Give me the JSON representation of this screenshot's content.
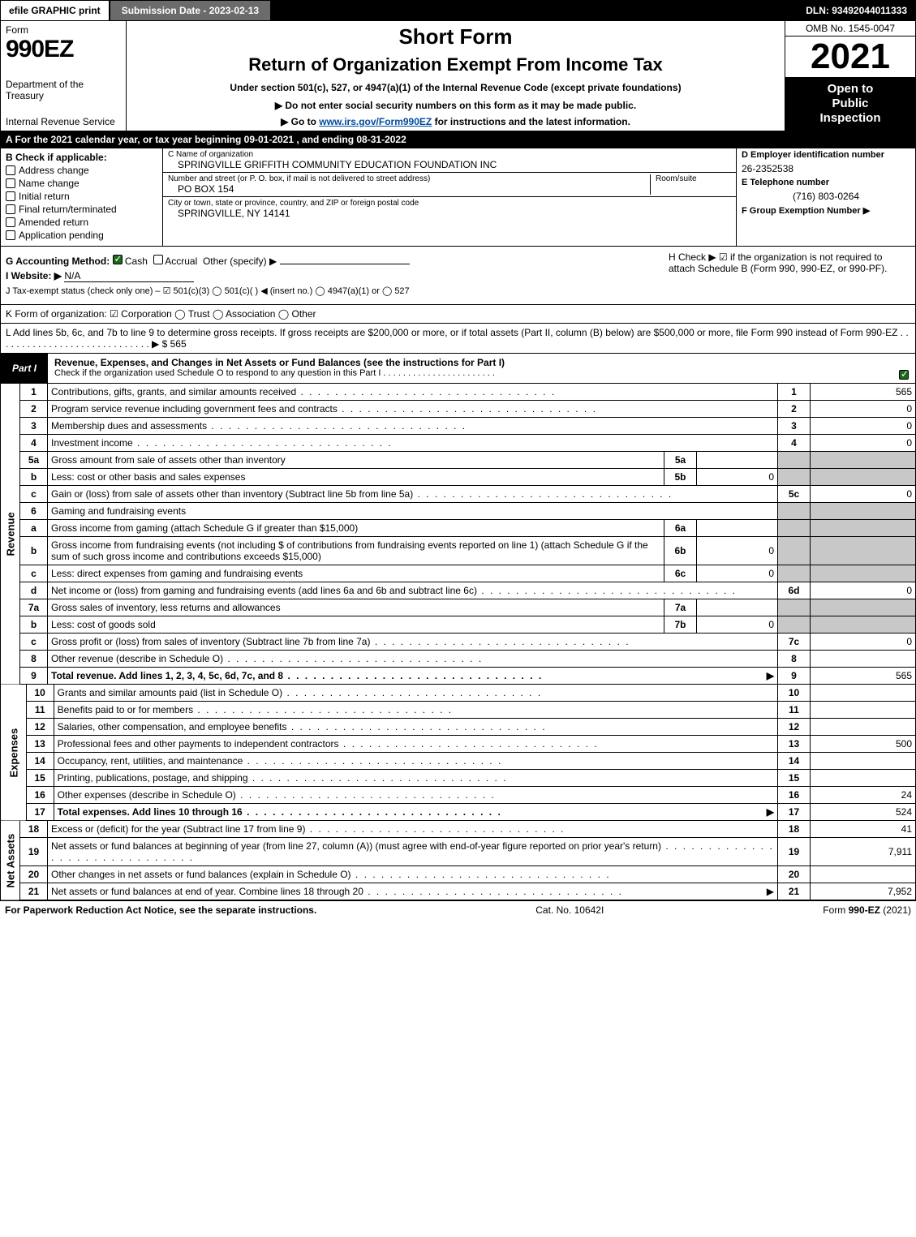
{
  "topbar": {
    "efile": "efile GRAPHIC print",
    "submission": "Submission Date - 2023-02-13",
    "dln": "DLN: 93492044011333"
  },
  "header": {
    "form_word": "Form",
    "form_num": "990EZ",
    "dept1": "Department of the Treasury",
    "dept2": "Internal Revenue Service",
    "short_form": "Short Form",
    "main_title": "Return of Organization Exempt From Income Tax",
    "subtitle": "Under section 501(c), 527, or 4947(a)(1) of the Internal Revenue Code (except private foundations)",
    "warn": "▶ Do not enter social security numbers on this form as it may be made public.",
    "goto_pre": "▶ Go to ",
    "goto_link": "www.irs.gov/Form990EZ",
    "goto_post": " for instructions and the latest information.",
    "omb": "OMB No. 1545-0047",
    "year": "2021",
    "open1": "Open to",
    "open2": "Public",
    "open3": "Inspection"
  },
  "line_a": "A  For the 2021 calendar year, or tax year beginning 09-01-2021 , and ending 08-31-2022",
  "box_b": {
    "title": "B  Check if applicable:",
    "items": [
      "Address change",
      "Name change",
      "Initial return",
      "Final return/terminated",
      "Amended return",
      "Application pending"
    ]
  },
  "box_c": {
    "name_lbl": "C Name of organization",
    "name_val": "SPRINGVILLE GRIFFITH COMMUNITY EDUCATION FOUNDATION INC",
    "addr_lbl": "Number and street (or P. O. box, if mail is not delivered to street address)",
    "addr_val": "PO BOX 154",
    "room_lbl": "Room/suite",
    "city_lbl": "City or town, state or province, country, and ZIP or foreign postal code",
    "city_val": "SPRINGVILLE, NY  14141"
  },
  "box_d": {
    "ein_lbl": "D Employer identification number",
    "ein_val": "26-2352538",
    "tel_lbl": "E Telephone number",
    "tel_val": "(716) 803-0264",
    "grp_lbl": "F Group Exemption Number   ▶"
  },
  "box_g": {
    "label": "G Accounting Method:",
    "cash": "Cash",
    "accrual": "Accrual",
    "other": "Other (specify) ▶"
  },
  "box_h": "H   Check ▶ ☑ if the organization is not required to attach Schedule B (Form 990, 990-EZ, or 990-PF).",
  "box_i": {
    "label": "I Website: ▶",
    "val": "N/A"
  },
  "box_j": "J Tax-exempt status (check only one) – ☑ 501(c)(3)  ◯ 501(c)(  ) ◀ (insert no.)  ◯ 4947(a)(1) or  ◯ 527",
  "box_k": "K Form of organization:  ☑ Corporation   ◯ Trust   ◯ Association   ◯ Other",
  "box_l": {
    "text": "L Add lines 5b, 6c, and 7b to line 9 to determine gross receipts. If gross receipts are $200,000 or more, or if total assets (Part II, column (B) below) are $500,000 or more, file Form 990 instead of Form 990-EZ  .  .  .  .  .  .  .  .  .  .  .  .  .  .  .  .  .  .  .  .  .  .  .  .  .  .  .  .  .   ▶ $",
    "val": "565"
  },
  "part1": {
    "tag": "Part I",
    "title": "Revenue, Expenses, and Changes in Net Assets or Fund Balances (see the instructions for Part I)",
    "sub": "Check if the organization used Schedule O to respond to any question in this Part I  .  .  .  .  .  .  .  .  .  .  .  .  .  .  .  .  .  .  .  .  .  .  ."
  },
  "revenue": [
    {
      "n": "1",
      "d": "Contributions, gifts, grants, and similar amounts received",
      "r": "1",
      "v": "565"
    },
    {
      "n": "2",
      "d": "Program service revenue including government fees and contracts",
      "r": "2",
      "v": "0"
    },
    {
      "n": "3",
      "d": "Membership dues and assessments",
      "r": "3",
      "v": "0"
    },
    {
      "n": "4",
      "d": "Investment income",
      "r": "4",
      "v": "0"
    },
    {
      "n": "5a",
      "d": "Gross amount from sale of assets other than inventory",
      "ib": "5a",
      "iv": ""
    },
    {
      "n": "b",
      "d": "Less: cost or other basis and sales expenses",
      "ib": "5b",
      "iv": "0"
    },
    {
      "n": "c",
      "d": "Gain or (loss) from sale of assets other than inventory (Subtract line 5b from line 5a)",
      "r": "5c",
      "v": "0"
    },
    {
      "n": "6",
      "d": "Gaming and fundraising events"
    },
    {
      "n": "a",
      "d": "Gross income from gaming (attach Schedule G if greater than $15,000)",
      "ib": "6a",
      "iv": ""
    },
    {
      "n": "b",
      "d": "Gross income from fundraising events (not including $                  of contributions from fundraising events reported on line 1) (attach Schedule G if the sum of such gross income and contributions exceeds $15,000)",
      "ib": "6b",
      "iv": "0"
    },
    {
      "n": "c",
      "d": "Less: direct expenses from gaming and fundraising events",
      "ib": "6c",
      "iv": "0"
    },
    {
      "n": "d",
      "d": "Net income or (loss) from gaming and fundraising events (add lines 6a and 6b and subtract line 6c)",
      "r": "6d",
      "v": "0"
    },
    {
      "n": "7a",
      "d": "Gross sales of inventory, less returns and allowances",
      "ib": "7a",
      "iv": ""
    },
    {
      "n": "b",
      "d": "Less: cost of goods sold",
      "ib": "7b",
      "iv": "0"
    },
    {
      "n": "c",
      "d": "Gross profit or (loss) from sales of inventory (Subtract line 7b from line 7a)",
      "r": "7c",
      "v": "0"
    },
    {
      "n": "8",
      "d": "Other revenue (describe in Schedule O)",
      "r": "8",
      "v": ""
    },
    {
      "n": "9",
      "d": "Total revenue. Add lines 1, 2, 3, 4, 5c, 6d, 7c, and 8",
      "r": "9",
      "v": "565",
      "bold": true,
      "arrow": true
    }
  ],
  "expenses": [
    {
      "n": "10",
      "d": "Grants and similar amounts paid (list in Schedule O)",
      "r": "10",
      "v": ""
    },
    {
      "n": "11",
      "d": "Benefits paid to or for members",
      "r": "11",
      "v": ""
    },
    {
      "n": "12",
      "d": "Salaries, other compensation, and employee benefits",
      "r": "12",
      "v": ""
    },
    {
      "n": "13",
      "d": "Professional fees and other payments to independent contractors",
      "r": "13",
      "v": "500"
    },
    {
      "n": "14",
      "d": "Occupancy, rent, utilities, and maintenance",
      "r": "14",
      "v": ""
    },
    {
      "n": "15",
      "d": "Printing, publications, postage, and shipping",
      "r": "15",
      "v": ""
    },
    {
      "n": "16",
      "d": "Other expenses (describe in Schedule O)",
      "r": "16",
      "v": "24"
    },
    {
      "n": "17",
      "d": "Total expenses. Add lines 10 through 16",
      "r": "17",
      "v": "524",
      "bold": true,
      "arrow": true
    }
  ],
  "netassets": [
    {
      "n": "18",
      "d": "Excess or (deficit) for the year (Subtract line 17 from line 9)",
      "r": "18",
      "v": "41"
    },
    {
      "n": "19",
      "d": "Net assets or fund balances at beginning of year (from line 27, column (A)) (must agree with end-of-year figure reported on prior year's return)",
      "r": "19",
      "v": "7,911"
    },
    {
      "n": "20",
      "d": "Other changes in net assets or fund balances (explain in Schedule O)",
      "r": "20",
      "v": ""
    },
    {
      "n": "21",
      "d": "Net assets or fund balances at end of year. Combine lines 18 through 20",
      "r": "21",
      "v": "7,952",
      "arrow": true
    }
  ],
  "vlabels": {
    "rev": "Revenue",
    "exp": "Expenses",
    "net": "Net Assets"
  },
  "footer": {
    "left": "For Paperwork Reduction Act Notice, see the separate instructions.",
    "mid": "Cat. No. 10642I",
    "right_pre": "Form ",
    "right_bold": "990-EZ",
    "right_post": " (2021)"
  }
}
